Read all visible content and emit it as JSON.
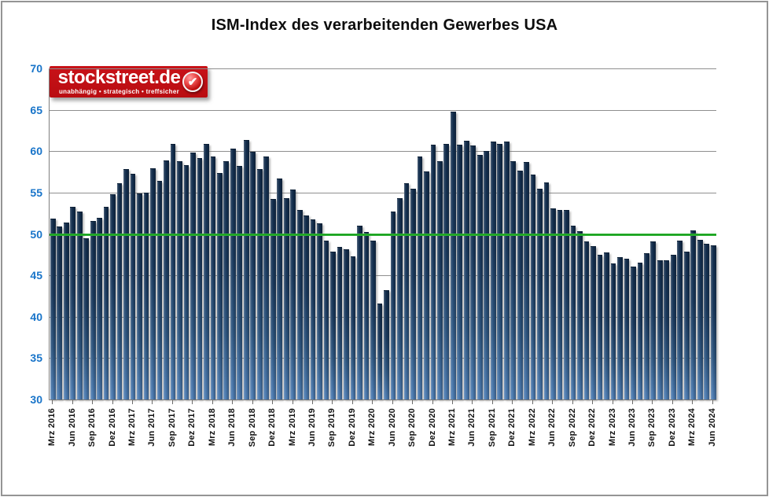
{
  "title": "ISM-Index des verarbeitenden Gewerbes USA",
  "logo": {
    "brand": "stockstreet.de",
    "tagline": "unabhängig • strategisch • treffsicher",
    "badge_glyph": "✔",
    "bg_color": "#C00D12"
  },
  "chart_data": {
    "type": "bar",
    "title": "ISM-Index des verarbeitenden Gewerbes USA",
    "x_start": "Mrz 2016",
    "x_end": "Jun 2024",
    "x_tick_interval_months": 3,
    "x_tick_labels": [
      "Mrz 2016",
      "Jun 2016",
      "Sep 2016",
      "Dez 2016",
      "Mrz 2017",
      "Jun 2017",
      "Sep 2017",
      "Dez 2017",
      "Mrz 2018",
      "Jun 2018",
      "Sep 2018",
      "Dez 2018",
      "Mrz 2019",
      "Jun 2019",
      "Sep 2019",
      "Dez 2019",
      "Mrz 2020",
      "Jun 2020",
      "Sep 2020",
      "Dez 2020",
      "Mrz 2021",
      "Jun 2021",
      "Sep 2021",
      "Dez 2021",
      "Mrz 2022",
      "Jun 2022",
      "Sep 2022",
      "Dez 2022",
      "Mrz 2023",
      "Jun 2023",
      "Sep 2023",
      "Dez 2023",
      "Mrz 2024",
      "Jun 2024"
    ],
    "ylim": [
      30,
      70
    ],
    "y_tick_labels": [
      70,
      65,
      60,
      55,
      50,
      45,
      40,
      35,
      30
    ],
    "grid": true,
    "legend": "none",
    "reference_line": {
      "value": 50,
      "color": "#0F9E17"
    },
    "series": [
      {
        "name": "ISM-Index",
        "values": [
          51.8,
          50.8,
          51.3,
          53.2,
          52.6,
          49.4,
          51.5,
          51.9,
          53.2,
          54.7,
          56.0,
          57.7,
          57.2,
          54.8,
          54.9,
          57.8,
          56.3,
          58.8,
          60.8,
          58.7,
          58.2,
          59.7,
          59.1,
          60.8,
          59.3,
          57.3,
          58.7,
          60.2,
          58.1,
          61.3,
          59.8,
          57.7,
          59.3,
          54.1,
          56.6,
          54.2,
          55.3,
          52.8,
          52.1,
          51.7,
          51.2,
          49.1,
          47.8,
          48.3,
          48.1,
          47.2,
          50.9,
          50.1,
          49.1,
          41.5,
          43.1,
          52.6,
          54.2,
          56.0,
          55.4,
          59.3,
          57.5,
          60.7,
          58.7,
          60.8,
          64.7,
          60.7,
          61.2,
          60.6,
          59.5,
          59.9,
          61.1,
          60.8,
          61.1,
          58.7,
          57.6,
          58.6,
          57.1,
          55.4,
          56.1,
          53.0,
          52.8,
          52.8,
          50.9,
          50.2,
          49.0,
          48.4,
          47.4,
          47.7,
          46.3,
          47.1,
          46.9,
          46.0,
          46.4,
          47.6,
          49.0,
          46.7,
          46.7,
          47.4,
          49.1,
          47.8,
          50.3,
          49.2,
          48.7,
          48.5
        ]
      }
    ],
    "colors": {
      "bar_top": "#14304F",
      "bar_bottom": "#4E7DB3",
      "reference_line": "#0F9E17",
      "y_axis_labels": "#1874C9",
      "gridline": "#8F8F8F",
      "x_axis_labels": "#141414"
    }
  }
}
